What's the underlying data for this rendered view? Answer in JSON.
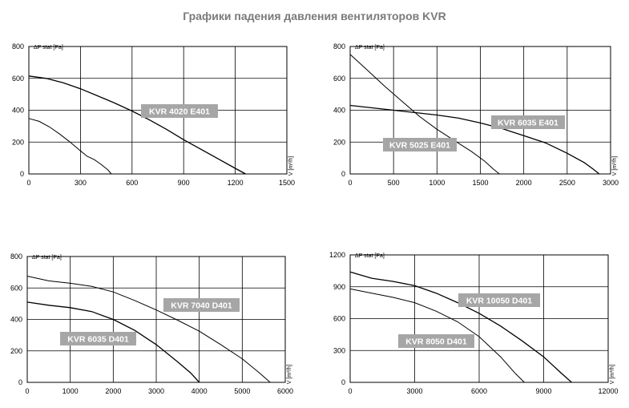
{
  "page": {
    "title": "Графики падения давления вентиляторов  KVR"
  },
  "chart_data": [
    {
      "type": "line",
      "ylabel": "ΔP stat [Pa]",
      "xlabel": "V [m³/h]",
      "xlim": [
        0,
        1500
      ],
      "ylim": [
        0,
        800
      ],
      "xticks": [
        "0",
        "300",
        "600",
        "900",
        "1200",
        "1500"
      ],
      "yticks": [
        "0",
        "200",
        "400",
        "600",
        "800"
      ],
      "grid": true,
      "series": [
        {
          "name": "KVR 4020 E401",
          "points": [
            [
              0,
              615
            ],
            [
              100,
              600
            ],
            [
              200,
              572
            ],
            [
              300,
              535
            ],
            [
              400,
              490
            ],
            [
              500,
              445
            ],
            [
              600,
              395
            ],
            [
              700,
              340
            ],
            [
              800,
              280
            ],
            [
              900,
              215
            ],
            [
              1000,
              155
            ],
            [
              1100,
              95
            ],
            [
              1200,
              35
            ],
            [
              1260,
              0
            ]
          ]
        },
        {
          "name": "",
          "style": "thin",
          "points": [
            [
              0,
              348
            ],
            [
              60,
              330
            ],
            [
              120,
              295
            ],
            [
              180,
              250
            ],
            [
              240,
              200
            ],
            [
              300,
              145
            ],
            [
              340,
              110
            ],
            [
              380,
              90
            ],
            [
              420,
              60
            ],
            [
              460,
              25
            ],
            [
              480,
              0
            ]
          ]
        }
      ]
    },
    {
      "type": "line",
      "ylabel": "ΔP stat [Pa]",
      "xlabel": "V [m³/h]",
      "xlim": [
        0,
        3000
      ],
      "ylim": [
        0,
        800
      ],
      "xticks": [
        "0",
        "500",
        "1000",
        "1500",
        "2000",
        "2500",
        "3000"
      ],
      "yticks": [
        "0",
        "200",
        "400",
        "600",
        "800"
      ],
      "grid": true,
      "series": [
        {
          "name": "KVR 6035 E401",
          "points": [
            [
              0,
              430
            ],
            [
              250,
              415
            ],
            [
              500,
              400
            ],
            [
              750,
              385
            ],
            [
              1000,
              370
            ],
            [
              1250,
              350
            ],
            [
              1500,
              320
            ],
            [
              1750,
              285
            ],
            [
              2000,
              240
            ],
            [
              2250,
              195
            ],
            [
              2500,
              130
            ],
            [
              2700,
              70
            ],
            [
              2800,
              30
            ],
            [
              2870,
              0
            ]
          ]
        },
        {
          "name": "KVR 5025 E401",
          "style": "thin",
          "points": [
            [
              0,
              750
            ],
            [
              200,
              650
            ],
            [
              400,
              550
            ],
            [
              600,
              455
            ],
            [
              800,
              360
            ],
            [
              1000,
              280
            ],
            [
              1200,
              210
            ],
            [
              1400,
              140
            ],
            [
              1550,
              80
            ],
            [
              1650,
              30
            ],
            [
              1720,
              0
            ]
          ]
        }
      ]
    },
    {
      "type": "line",
      "ylabel": "ΔP stat [Pa]",
      "xlabel": "V [m³/h]",
      "xlim": [
        0,
        6000
      ],
      "ylim": [
        0,
        800
      ],
      "xticks": [
        "0",
        "1000",
        "2000",
        "3000",
        "4000",
        "5000",
        "6000"
      ],
      "yticks": [
        "0",
        "200",
        "400",
        "600",
        "800"
      ],
      "grid": true,
      "series": [
        {
          "name": "KVR 7040 D401",
          "style": "thin",
          "points": [
            [
              0,
              675
            ],
            [
              500,
              645
            ],
            [
              1000,
              630
            ],
            [
              1500,
              610
            ],
            [
              2000,
              575
            ],
            [
              2500,
              520
            ],
            [
              3000,
              460
            ],
            [
              3500,
              395
            ],
            [
              4000,
              325
            ],
            [
              4500,
              240
            ],
            [
              5000,
              150
            ],
            [
              5400,
              60
            ],
            [
              5650,
              0
            ]
          ]
        },
        {
          "name": "KVR 6035 D401",
          "points": [
            [
              0,
              510
            ],
            [
              500,
              490
            ],
            [
              1000,
              475
            ],
            [
              1500,
              450
            ],
            [
              2000,
              400
            ],
            [
              2500,
              330
            ],
            [
              3000,
              240
            ],
            [
              3500,
              130
            ],
            [
              3800,
              60
            ],
            [
              4000,
              0
            ]
          ]
        }
      ]
    },
    {
      "type": "line",
      "ylabel": "ΔP stat [Pa]",
      "xlabel": "V [m³/h]",
      "xlim": [
        0,
        12000
      ],
      "ylim": [
        0,
        1200
      ],
      "xticks": [
        "0",
        "3000",
        "6000",
        "9000",
        "12000"
      ],
      "yticks": [
        "0",
        "300",
        "600",
        "900",
        "1200"
      ],
      "grid": true,
      "series": [
        {
          "name": "KVR 10050 D401",
          "points": [
            [
              0,
              1040
            ],
            [
              1000,
              980
            ],
            [
              2000,
              950
            ],
            [
              3000,
              910
            ],
            [
              4000,
              840
            ],
            [
              5000,
              750
            ],
            [
              6000,
              650
            ],
            [
              7000,
              530
            ],
            [
              8000,
              390
            ],
            [
              9000,
              240
            ],
            [
              9800,
              90
            ],
            [
              10300,
              0
            ]
          ]
        },
        {
          "name": "KVR 8050 D401",
          "style": "thin",
          "points": [
            [
              0,
              880
            ],
            [
              1000,
              840
            ],
            [
              2000,
              800
            ],
            [
              3000,
              750
            ],
            [
              4000,
              670
            ],
            [
              5000,
              570
            ],
            [
              6000,
              430
            ],
            [
              7000,
              240
            ],
            [
              7700,
              80
            ],
            [
              8100,
              0
            ]
          ]
        }
      ]
    }
  ]
}
